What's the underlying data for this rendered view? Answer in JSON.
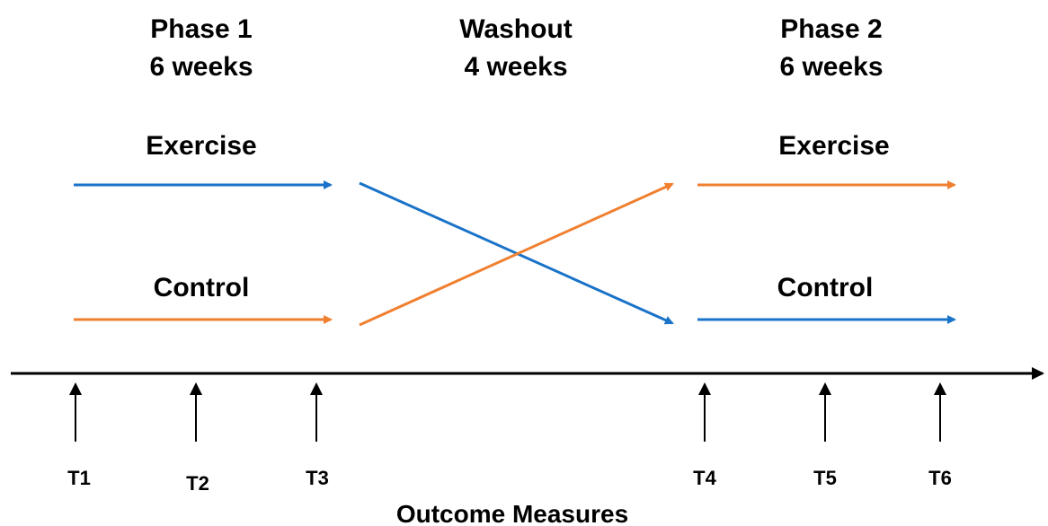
{
  "colors": {
    "exercise_arrow": "#1a73c8",
    "control_arrow": "#f08030",
    "axis": "#000000",
    "background": "#ffffff"
  },
  "phases": {
    "phase1": {
      "title": "Phase 1",
      "duration": "6 weeks"
    },
    "washout": {
      "title": "Washout",
      "duration": "4 weeks"
    },
    "phase2": {
      "title": "Phase 2",
      "duration": "6 weeks"
    }
  },
  "groups": {
    "phase1_top": "Exercise",
    "phase1_bottom": "Control",
    "phase2_top": "Exercise",
    "phase2_bottom": "Control"
  },
  "timepoints": [
    "T1",
    "T2",
    "T3",
    "T4",
    "T5",
    "T6"
  ],
  "axis_title": "Outcome Measures"
}
